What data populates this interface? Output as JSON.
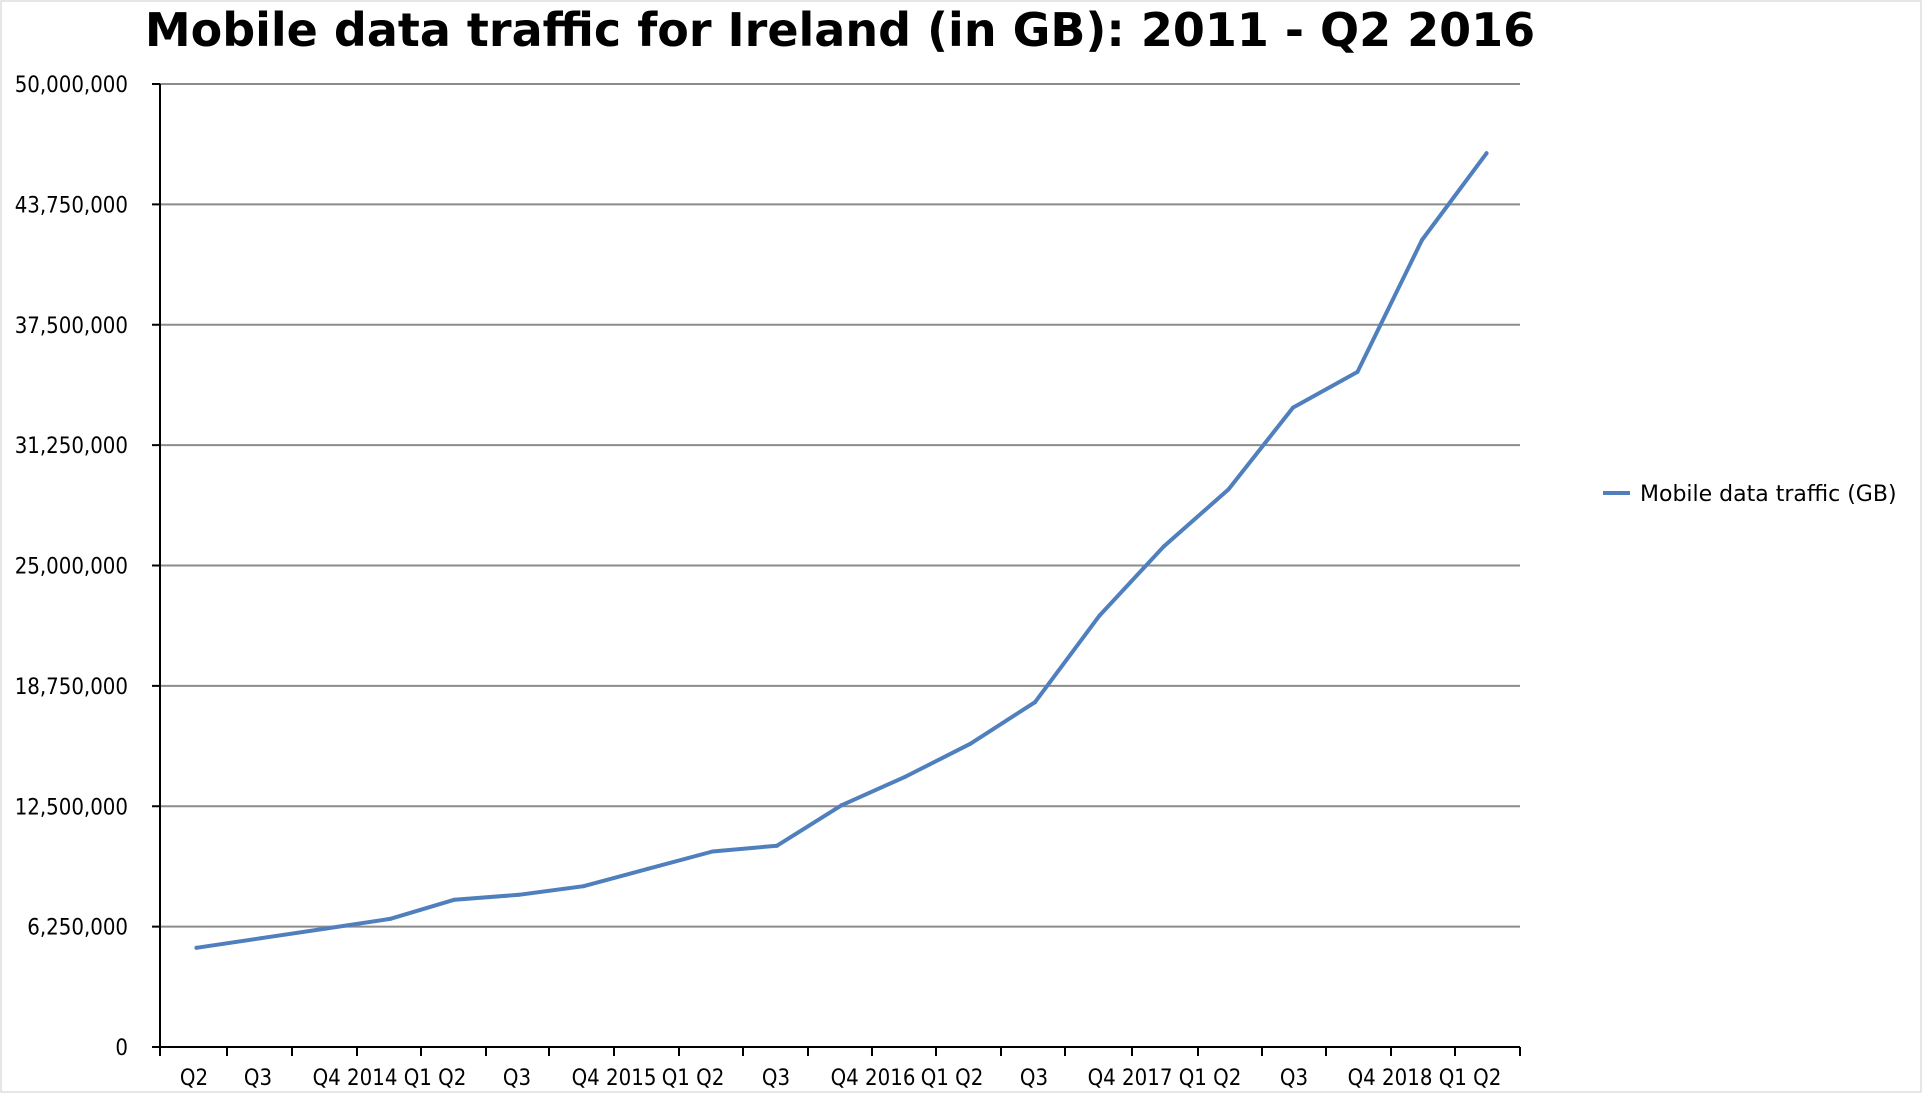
{
  "chart_data": {
    "type": "line",
    "title": "Mobile data traffic for Ireland (in GB): 2011 - Q2 2016",
    "xlabel": "",
    "ylabel": "",
    "ylim": [
      0,
      50000000
    ],
    "y_ticks": [
      "0",
      "6,250,000",
      "12,500,000",
      "18,750,000",
      "25,000,000",
      "31,250,000",
      "37,500,000",
      "43,750,000",
      "50,000,000"
    ],
    "categories": [
      "Q2",
      "Q3",
      "Q4",
      "2014 Q1",
      "Q2",
      "Q3",
      "Q4",
      "2015 Q1",
      "Q2",
      "Q3",
      "Q4",
      "2016 Q1",
      "Q2",
      "Q3",
      "Q4",
      "2017 Q1",
      "Q2",
      "Q3",
      "Q4",
      "2018 Q1",
      "Q2"
    ],
    "x_tick_labels": [
      "Q2",
      "Q3",
      "Q4 2014",
      "Q1 Q2",
      "Q3",
      "Q4 2015",
      "Q1 Q2",
      "Q3",
      "Q4 2016",
      "Q1 Q2",
      "Q3",
      "Q4 2017",
      "Q1 Q2",
      "Q3",
      "Q4 2018",
      "Q1 Q2"
    ],
    "series": [
      {
        "name": "Mobile data traffic (GB)",
        "color": "#4f7fbd",
        "values": [
          5150000,
          5650000,
          6150000,
          6650000,
          7650000,
          7900000,
          8350000,
          9250000,
          10150000,
          10450000,
          12550000,
          14050000,
          15750000,
          17900000,
          22400000,
          26000000,
          28950000,
          33200000,
          35050000,
          41900000,
          46400000
        ]
      }
    ],
    "grid": true,
    "legend_position": "right"
  }
}
